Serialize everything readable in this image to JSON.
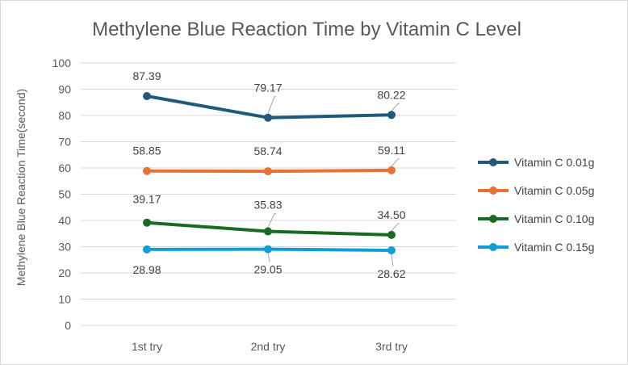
{
  "chart_data": {
    "type": "line",
    "title": "Methylene Blue Reaction Time by Vitamin C Level",
    "xlabel": "",
    "ylabel": "Methylene Blue Reaction Time(second)",
    "categories": [
      "1st try",
      "2nd try",
      "3rd try"
    ],
    "ylim": [
      0,
      100
    ],
    "yticks": [
      0,
      10,
      20,
      30,
      40,
      50,
      60,
      70,
      80,
      90,
      100
    ],
    "grid": true,
    "legend_position": "right",
    "data_labels": true,
    "series": [
      {
        "name": "Vitamin C 0.01g",
        "color": "#1f5a7a",
        "values": [
          87.39,
          79.17,
          80.22
        ],
        "labels": [
          "87.39",
          "79.17",
          "80.22"
        ]
      },
      {
        "name": "Vitamin C 0.05g",
        "color": "#e97132",
        "values": [
          58.85,
          58.74,
          59.11
        ],
        "labels": [
          "58.85",
          "58.74",
          "59.11"
        ]
      },
      {
        "name": "Vitamin C 0.10g",
        "color": "#196b24",
        "values": [
          39.17,
          35.83,
          34.5
        ],
        "labels": [
          "39.17",
          "35.83",
          "34.50"
        ]
      },
      {
        "name": "Vitamin C 0.15g",
        "color": "#0f9ed5",
        "values": [
          28.98,
          29.05,
          28.62
        ],
        "labels": [
          "28.98",
          "29.05",
          "28.62"
        ]
      }
    ]
  }
}
